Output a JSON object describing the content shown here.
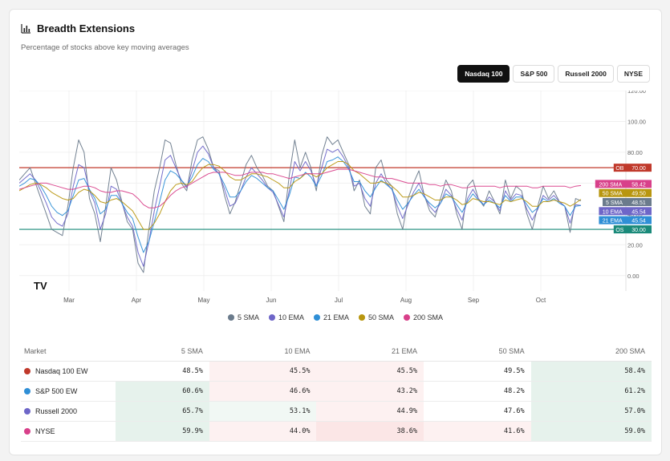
{
  "header": {
    "title": "Breadth Extensions",
    "subtitle": "Percentage of stocks above key moving averages"
  },
  "tabs": [
    {
      "label": "Nasdaq 100",
      "active": true
    },
    {
      "label": "S&P 500",
      "active": false
    },
    {
      "label": "Russell 2000",
      "active": false
    },
    {
      "label": "NYSE",
      "active": false
    }
  ],
  "chart_data": {
    "type": "line",
    "title": "Breadth Extensions",
    "ylim": [
      -10,
      120
    ],
    "yticks": [
      "0.00",
      "20.00",
      "40.00",
      "60.00",
      "80.00",
      "100.00",
      "120.00"
    ],
    "x_labels": [
      "Mar",
      "Apr",
      "May",
      "Jun",
      "Jul",
      "Aug",
      "Sep",
      "Oct"
    ],
    "grid": true,
    "legend_position": "bottom",
    "series": [
      {
        "name": "5 SMA",
        "color": "#6b7b8c",
        "label": "5 SMA",
        "last": 48.51,
        "values": [
          62,
          66,
          70,
          60,
          50,
          40,
          30,
          28,
          26,
          45,
          70,
          88,
          80,
          50,
          40,
          22,
          45,
          70,
          62,
          48,
          35,
          30,
          8,
          2,
          30,
          55,
          70,
          88,
          86,
          72,
          60,
          55,
          75,
          88,
          90,
          82,
          70,
          68,
          52,
          40,
          48,
          60,
          72,
          78,
          70,
          65,
          58,
          55,
          45,
          35,
          65,
          88,
          70,
          80,
          70,
          55,
          78,
          90,
          85,
          88,
          80,
          72,
          55,
          62,
          45,
          40,
          70,
          75,
          62,
          58,
          40,
          30,
          50,
          60,
          68,
          52,
          42,
          38,
          50,
          62,
          55,
          40,
          30,
          58,
          62,
          50,
          45,
          55,
          48,
          40,
          62,
          50,
          58,
          55,
          40,
          30,
          45,
          58,
          50,
          55,
          48,
          45,
          28,
          50,
          48.51
        ]
      },
      {
        "name": "10 EMA",
        "color": "#6e66c8",
        "label": "10 EMA",
        "last": 45.54,
        "values": [
          60,
          63,
          66,
          62,
          55,
          47,
          38,
          34,
          32,
          40,
          58,
          72,
          70,
          55,
          47,
          30,
          40,
          58,
          56,
          47,
          38,
          32,
          15,
          6,
          22,
          42,
          58,
          75,
          78,
          70,
          62,
          57,
          68,
          80,
          84,
          79,
          70,
          66,
          56,
          45,
          47,
          55,
          64,
          70,
          66,
          62,
          57,
          54,
          46,
          38,
          55,
          74,
          68,
          74,
          68,
          58,
          70,
          82,
          80,
          82,
          77,
          70,
          58,
          60,
          50,
          45,
          60,
          66,
          60,
          56,
          45,
          37,
          46,
          54,
          60,
          52,
          45,
          41,
          47,
          56,
          52,
          43,
          36,
          50,
          56,
          50,
          46,
          51,
          48,
          42,
          55,
          49,
          53,
          52,
          43,
          36,
          43,
          52,
          49,
          52,
          48,
          45,
          34,
          46,
          45.54
        ]
      },
      {
        "name": "21 EMA",
        "color": "#2f8fd6",
        "label": "21 EMA",
        "last": 45.54,
        "values": [
          58,
          60,
          63,
          62,
          58,
          52,
          45,
          41,
          39,
          42,
          52,
          62,
          63,
          56,
          50,
          40,
          43,
          52,
          52,
          47,
          41,
          37,
          25,
          15,
          22,
          35,
          48,
          62,
          68,
          66,
          62,
          58,
          64,
          72,
          76,
          74,
          69,
          66,
          59,
          51,
          51,
          55,
          61,
          65,
          63,
          60,
          57,
          55,
          49,
          43,
          52,
          64,
          63,
          67,
          64,
          58,
          65,
          74,
          75,
          77,
          74,
          69,
          61,
          61,
          55,
          51,
          57,
          62,
          59,
          56,
          49,
          43,
          47,
          52,
          56,
          51,
          47,
          44,
          47,
          53,
          51,
          46,
          41,
          48,
          53,
          49,
          46,
          49,
          47,
          44,
          52,
          48,
          51,
          51,
          46,
          41,
          44,
          50,
          48,
          50,
          47,
          45,
          39,
          45,
          45.54
        ]
      },
      {
        "name": "50 SMA",
        "color": "#b8960f",
        "label": "50 SMA",
        "last": 49.5,
        "values": [
          55,
          57,
          59,
          60,
          59,
          57,
          54,
          52,
          50,
          49,
          50,
          54,
          56,
          55,
          52,
          48,
          47,
          49,
          50,
          48,
          45,
          42,
          36,
          30,
          30,
          34,
          40,
          48,
          55,
          59,
          60,
          59,
          61,
          66,
          70,
          72,
          72,
          71,
          68,
          64,
          62,
          62,
          64,
          66,
          66,
          65,
          64,
          62,
          60,
          57,
          57,
          61,
          63,
          66,
          66,
          64,
          66,
          70,
          72,
          74,
          74,
          72,
          68,
          66,
          63,
          60,
          60,
          61,
          60,
          58,
          55,
          51,
          51,
          52,
          54,
          53,
          51,
          49,
          49,
          51,
          51,
          49,
          46,
          47,
          50,
          49,
          48,
          48,
          47,
          46,
          49,
          48,
          49,
          50,
          48,
          45,
          45,
          48,
          48,
          49,
          48,
          47,
          45,
          47,
          49.5
        ]
      },
      {
        "name": "200 SMA",
        "color": "#d8408a",
        "label": "200 SMA",
        "last": 58.42,
        "values": [
          56,
          57,
          58,
          59,
          60,
          60,
          59,
          58,
          57,
          56,
          56,
          57,
          58,
          58,
          57,
          55,
          54,
          54,
          55,
          55,
          54,
          53,
          50,
          46,
          44,
          44,
          45,
          48,
          52,
          55,
          57,
          58,
          60,
          62,
          64,
          66,
          67,
          67,
          67,
          66,
          65,
          65,
          66,
          67,
          67,
          67,
          66,
          66,
          65,
          64,
          63,
          64,
          65,
          66,
          66,
          66,
          66,
          67,
          68,
          69,
          69,
          69,
          68,
          67,
          66,
          65,
          64,
          64,
          63,
          63,
          62,
          61,
          60,
          60,
          60,
          60,
          59,
          59,
          58,
          59,
          59,
          58,
          57,
          57,
          58,
          58,
          58,
          58,
          58,
          57,
          58,
          58,
          58,
          58,
          58,
          57,
          57,
          58,
          58,
          58,
          58,
          58,
          57,
          58,
          58.42
        ]
      }
    ],
    "reference_lines": [
      {
        "name": "OB",
        "value": 70.0,
        "color": "#c0392b",
        "label": "OB",
        "value_text": "70.00"
      },
      {
        "name": "OS",
        "value": 30.0,
        "color": "#1a8a7a",
        "label": "OS",
        "value_text": "30.00"
      }
    ],
    "price_tags": [
      {
        "label": "200 SMA",
        "value_text": "58.42",
        "color": "#d8408a"
      },
      {
        "label": "50 SMA",
        "value_text": "49.50",
        "color": "#b8960f"
      },
      {
        "label": "5 SMA",
        "value_text": "48.51",
        "color": "#6b7b8c"
      },
      {
        "label": "10 EMA",
        "value_text": "45.54",
        "color": "#6e66c8"
      },
      {
        "label": "21 EMA",
        "value_text": "45.54",
        "color": "#2f8fd6"
      }
    ]
  },
  "legend": [
    {
      "label": "5 SMA",
      "color": "#6b7b8c"
    },
    {
      "label": "10 EMA",
      "color": "#6e66c8"
    },
    {
      "label": "21 EMA",
      "color": "#2f8fd6"
    },
    {
      "label": "50 SMA",
      "color": "#b8960f"
    },
    {
      "label": "200 SMA",
      "color": "#d8408a"
    }
  ],
  "table": {
    "headers": [
      "Market",
      "5 SMA",
      "10 EMA",
      "21 EMA",
      "50 SMA",
      "200 SMA"
    ],
    "rows": [
      {
        "market": "Nasdaq 100 EW",
        "dot": "#c0392b",
        "values": [
          "48.5%",
          "45.5%",
          "45.5%",
          "49.5%",
          "58.4%"
        ],
        "heat": [
          0,
          -1,
          -1,
          0,
          2
        ]
      },
      {
        "market": "S&P 500 EW",
        "dot": "#2f8fd6",
        "values": [
          "60.6%",
          "46.6%",
          "43.2%",
          "48.2%",
          "61.2%"
        ],
        "heat": [
          2,
          -1,
          -1,
          0,
          2
        ]
      },
      {
        "market": "Russell 2000",
        "dot": "#6e66c8",
        "values": [
          "65.7%",
          "53.1%",
          "44.9%",
          "47.6%",
          "57.0%"
        ],
        "heat": [
          2,
          1,
          -1,
          0,
          2
        ]
      },
      {
        "market": "NYSE",
        "dot": "#d8408a",
        "values": [
          "59.9%",
          "44.0%",
          "38.6%",
          "41.6%",
          "59.0%"
        ],
        "heat": [
          2,
          -1,
          -2,
          -1,
          2
        ]
      }
    ]
  },
  "watermark": "TV"
}
